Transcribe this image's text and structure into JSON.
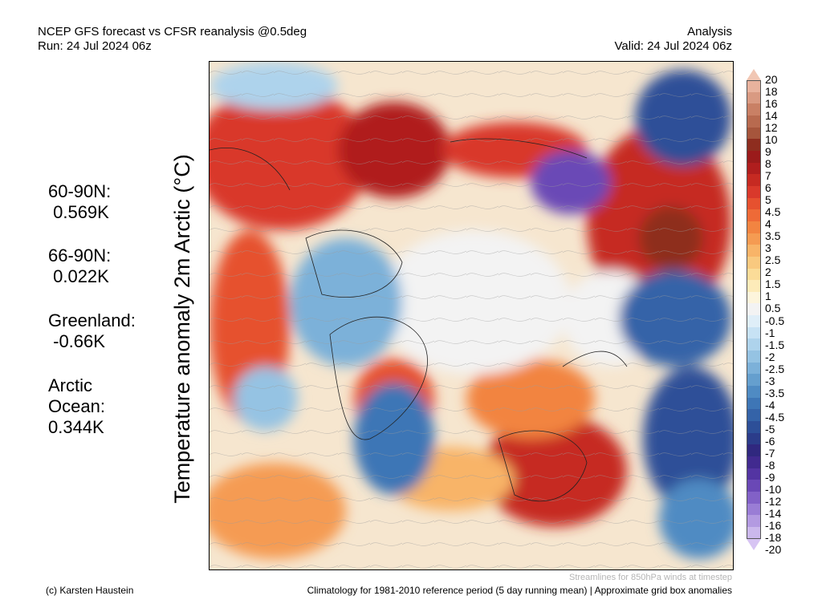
{
  "header": {
    "title_line1": "NCEP GFS forecast vs CFSR reanalysis @0.5deg",
    "title_line2": "Run: 24 Jul 2024 06z",
    "right_line1": "Analysis",
    "right_line2": "Valid: 24 Jul 2024 06z"
  },
  "stats": [
    {
      "text": "60-90N:\n 0.569K"
    },
    {
      "text": "66-90N:\n 0.022K"
    },
    {
      "text": "Greenland:\n -0.66K"
    },
    {
      "text": "Arctic\nOcean:\n0.344K"
    }
  ],
  "axis_label": "Temperature anomaly 2m Arctic (°C)",
  "colorbar": {
    "labels": [
      "20",
      "18",
      "16",
      "14",
      "12",
      "10",
      "9",
      "8",
      "7",
      "6",
      "5",
      "4.5",
      "4",
      "3.5",
      "3",
      "2.5",
      "2",
      "1.5",
      "1",
      "0.5",
      "-0.5",
      "-1",
      "-1.5",
      "-2",
      "-2.5",
      "-3",
      "-3.5",
      "-4",
      "-4.5",
      "-5",
      "-6",
      "-7",
      "-8",
      "-9",
      "-10",
      "-12",
      "-14",
      "-16",
      "-18",
      "-20"
    ],
    "colors": [
      "#e8b29d",
      "#d99a82",
      "#c98065",
      "#b86a4f",
      "#a6553c",
      "#8e2d1f",
      "#9b1b1b",
      "#b01e1e",
      "#c62a22",
      "#d9392b",
      "#e6512f",
      "#ee6a37",
      "#f28441",
      "#f59b52",
      "#f8b468",
      "#f9c97f",
      "#fbdc98",
      "#fdebb9",
      "#fdf5dc",
      "#f3f3f3",
      "#dfeef8",
      "#c7e2f4",
      "#aed3ec",
      "#95c3e3",
      "#7cb1d9",
      "#659fce",
      "#4f8bc3",
      "#3e76b6",
      "#3463a8",
      "#2d4f98",
      "#2b3c8a",
      "#30287f",
      "#412a8f",
      "#5334a2",
      "#6a48b6",
      "#8261c7",
      "#9a7dd5",
      "#b39ae1",
      "#cbb8ec"
    ],
    "top_triangle_color": "#f1c7b4",
    "bottom_triangle_color": "#d7c4f3"
  },
  "footer": {
    "credit": "(c) Karsten Haustein",
    "note": "Streamlines for 850hPa winds at timestep",
    "climatology": "Climatology for 1981-2010 reference period (5 day running mean) | Approximate grid box anomalies"
  }
}
